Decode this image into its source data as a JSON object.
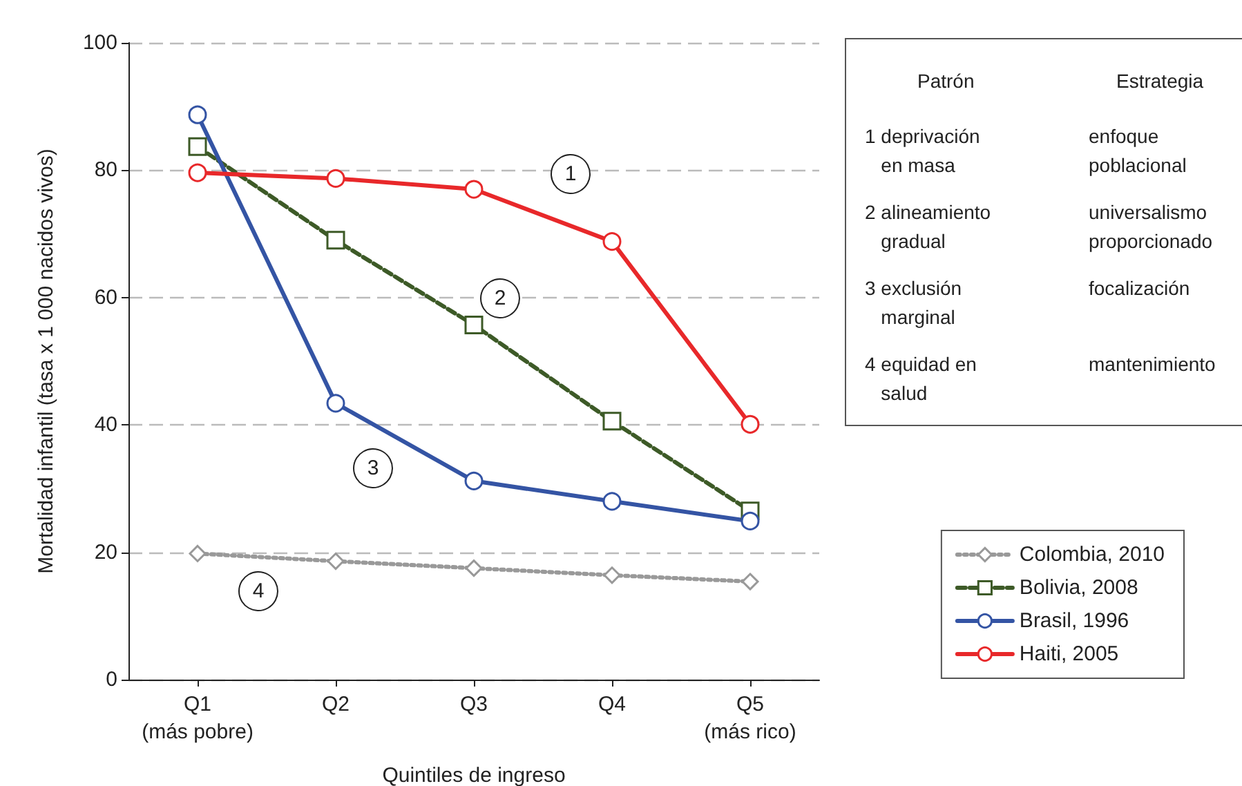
{
  "chart_data": {
    "type": "line",
    "xlabel": "Quintiles de ingreso",
    "ylabel": "Mortalidad infantil (tasa x 1 000 nacidos vivos)",
    "categories": [
      "Q1\n(más pobre)",
      "Q2",
      "Q3",
      "Q4",
      "Q5\n(más rico)"
    ],
    "series": [
      {
        "name": "Colombia, 2010",
        "color": "#999999",
        "marker": "diamond",
        "line_style": "dotted",
        "values": [
          19.8,
          18.6,
          17.5,
          16.4,
          15.4
        ]
      },
      {
        "name": "Bolivia, 2008",
        "color": "#3d5a27",
        "marker": "square",
        "line_style": "dashed",
        "values": [
          83.7,
          69,
          55.7,
          40.6,
          26.5
        ]
      },
      {
        "name": "Brasil, 1996",
        "color": "#3454a4",
        "marker": "circle",
        "line_style": "solid",
        "values": [
          88.7,
          43.4,
          31.2,
          28,
          24.9
        ]
      },
      {
        "name": "Haiti, 2005",
        "color": "#e8282a",
        "marker": "circle",
        "line_style": "solid",
        "values": [
          79.6,
          78.7,
          77,
          68.8,
          40.1
        ]
      }
    ],
    "ylim": [
      0,
      100
    ],
    "yticks": [
      0,
      20,
      40,
      60,
      80,
      100
    ],
    "grid": "y",
    "legend": "bottom right",
    "annotations": [
      "1",
      "2",
      "3",
      "4",
      "Patrón",
      "Estrategia",
      "1 deprivación\n   en masa",
      "enfoque\npoblacional",
      "2 alineamiento\n   gradual",
      "universalismo\nproporcionado",
      "3 exclusión\n   marginal",
      "focalización",
      "4 equidad en\n   salud",
      "mantenimiento"
    ]
  }
}
